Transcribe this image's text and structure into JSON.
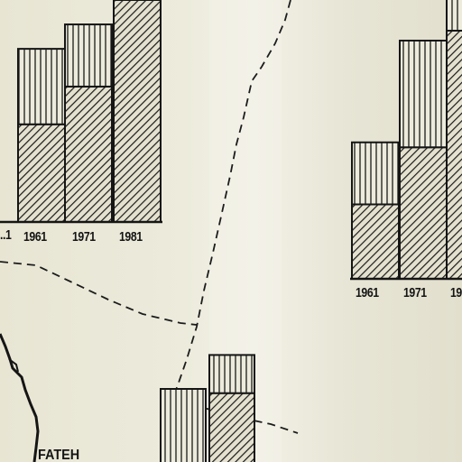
{
  "map": {
    "town_label": "FATEH"
  },
  "chart_data": [
    {
      "type": "bar",
      "name": "left-chart",
      "stacked": true,
      "categories": [
        "1961",
        "1971",
        "1981"
      ],
      "clipped_category_label": "..1",
      "series": [
        {
          "name": "lower (diagonal hatch)",
          "values": [
            0.44,
            0.61,
            1.0
          ]
        },
        {
          "name": "upper (vertical hatch)",
          "values": [
            0.34,
            0.28,
            0.0
          ]
        }
      ],
      "title": "",
      "xlabel": "",
      "ylabel": ""
    },
    {
      "type": "bar",
      "name": "right-chart",
      "stacked": true,
      "categories": [
        "1961",
        "1971",
        "19.."
      ],
      "series": [
        {
          "name": "lower (diagonal hatch)",
          "values": [
            0.3,
            0.53,
            1.0
          ]
        },
        {
          "name": "upper (vertical hatch)",
          "values": [
            0.25,
            0.43,
            0.45
          ]
        }
      ],
      "title": "",
      "xlabel": "",
      "ylabel": ""
    },
    {
      "type": "bar",
      "name": "bottom-chart",
      "stacked": true,
      "categories": [
        "",
        ""
      ],
      "series": [
        {
          "name": "lower (diagonal hatch)",
          "values": [
            0.0,
            0.95
          ]
        },
        {
          "name": "upper (vertical hatch)",
          "values": [
            1.0,
            0.45
          ]
        }
      ],
      "title": "",
      "xlabel": "",
      "ylabel": ""
    }
  ]
}
